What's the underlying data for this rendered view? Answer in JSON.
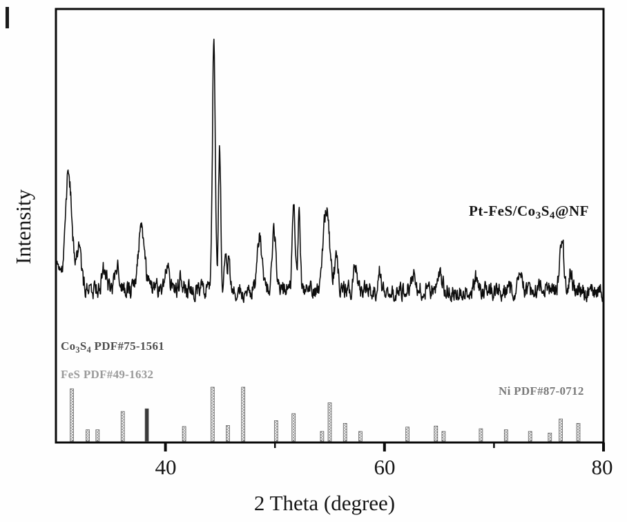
{
  "figure": {
    "background_color": "#fefefe",
    "frame_color": "#0a0a0a"
  },
  "chart_data": {
    "type": "line",
    "subtype": "xrd-pattern",
    "title": "",
    "xlabel": "2 Theta (degree)",
    "ylabel": "Intensity",
    "xlim": [
      30,
      80
    ],
    "x_tick_labels": [
      "40",
      "60",
      "80"
    ],
    "x_major_ticks": [
      40,
      60,
      80
    ],
    "x_minor_ticks": [
      50,
      70
    ],
    "y_axis_ticks": "none (arbitrary intensity units)",
    "grid": false,
    "legend_position": "none (inline text labels)",
    "series": [
      {
        "name": "Pt-FeS/Co3S4@NF",
        "label_segments": [
          {
            "t": "Pt-FeS/Co"
          },
          {
            "t": "3",
            "sub": true
          },
          {
            "t": "S"
          },
          {
            "t": "4",
            "sub": true
          },
          {
            "t": "@NF"
          }
        ],
        "color": "#0c0c0c",
        "baseline_intensity_rel": 0,
        "noise_amplitude_rel": 3,
        "peaks_2theta_intensity_width": [
          [
            30.0,
            12,
            0.35
          ],
          [
            31.15,
            46,
            0.45
          ],
          [
            32.1,
            17,
            0.3
          ],
          [
            34.4,
            8,
            0.3
          ],
          [
            35.6,
            10,
            0.3
          ],
          [
            37.8,
            25,
            0.4
          ],
          [
            40.2,
            9,
            0.25
          ],
          [
            41.4,
            6,
            0.2
          ],
          [
            44.42,
            100,
            0.18
          ],
          [
            44.95,
            57,
            0.15
          ],
          [
            45.5,
            14,
            0.15
          ],
          [
            45.8,
            12,
            0.15
          ],
          [
            48.6,
            22,
            0.3
          ],
          [
            49.9,
            24,
            0.25
          ],
          [
            51.7,
            35,
            0.18
          ],
          [
            52.2,
            29,
            0.15
          ],
          [
            54.7,
            33,
            0.4
          ],
          [
            55.6,
            12,
            0.25
          ],
          [
            57.3,
            10,
            0.2
          ],
          [
            59.6,
            8,
            0.15
          ],
          [
            62.6,
            5,
            0.3
          ],
          [
            65.1,
            4,
            0.3
          ],
          [
            68.4,
            5,
            0.3
          ],
          [
            72.4,
            4,
            0.3
          ],
          [
            76.2,
            22,
            0.25
          ],
          [
            77.0,
            8,
            0.2
          ]
        ]
      }
    ],
    "reference_patterns": [
      {
        "name": "Co3S4",
        "label": "Co3S4 PDF#75-1561",
        "label_segments": [
          {
            "t": "Co"
          },
          {
            "t": "3",
            "sub": true
          },
          {
            "t": "S"
          },
          {
            "t": "4",
            "sub": true
          },
          {
            "t": " PDF#75-1561"
          }
        ],
        "label_color": "#4e4e4e",
        "stick_style": "hatched-gray",
        "peaks_2theta_relheight": [
          [
            31.45,
            97
          ],
          [
            32.9,
            21
          ],
          [
            38.3,
            60,
            1
          ],
          [
            47.1,
            100
          ],
          [
            50.1,
            38
          ],
          [
            55.0,
            71
          ],
          [
            64.7,
            28
          ],
          [
            77.7,
            33
          ]
        ]
      },
      {
        "name": "FeS",
        "label": "FeS PDF#49-1632",
        "label_color": "#9a9a9a",
        "stick_style": "hatched-gray",
        "peaks_2theta_relheight": [
          [
            33.8,
            21
          ],
          [
            36.1,
            55
          ],
          [
            41.7,
            27
          ],
          [
            45.7,
            29
          ],
          [
            54.3,
            18
          ],
          [
            56.4,
            33
          ],
          [
            57.8,
            18
          ],
          [
            62.1,
            26
          ],
          [
            65.4,
            18
          ],
          [
            68.8,
            23
          ],
          [
            71.1,
            21
          ],
          [
            73.3,
            18
          ],
          [
            75.1,
            15
          ]
        ]
      },
      {
        "name": "Ni",
        "label": "Ni PDF#87-0712",
        "label_color": "#7a7a7a",
        "stick_style": "hatched-gray",
        "peaks_2theta_relheight": [
          [
            44.3,
            100
          ],
          [
            51.7,
            51
          ],
          [
            76.1,
            41
          ]
        ]
      }
    ],
    "stick_fill_color": "#8f8f8f",
    "annotations": []
  }
}
